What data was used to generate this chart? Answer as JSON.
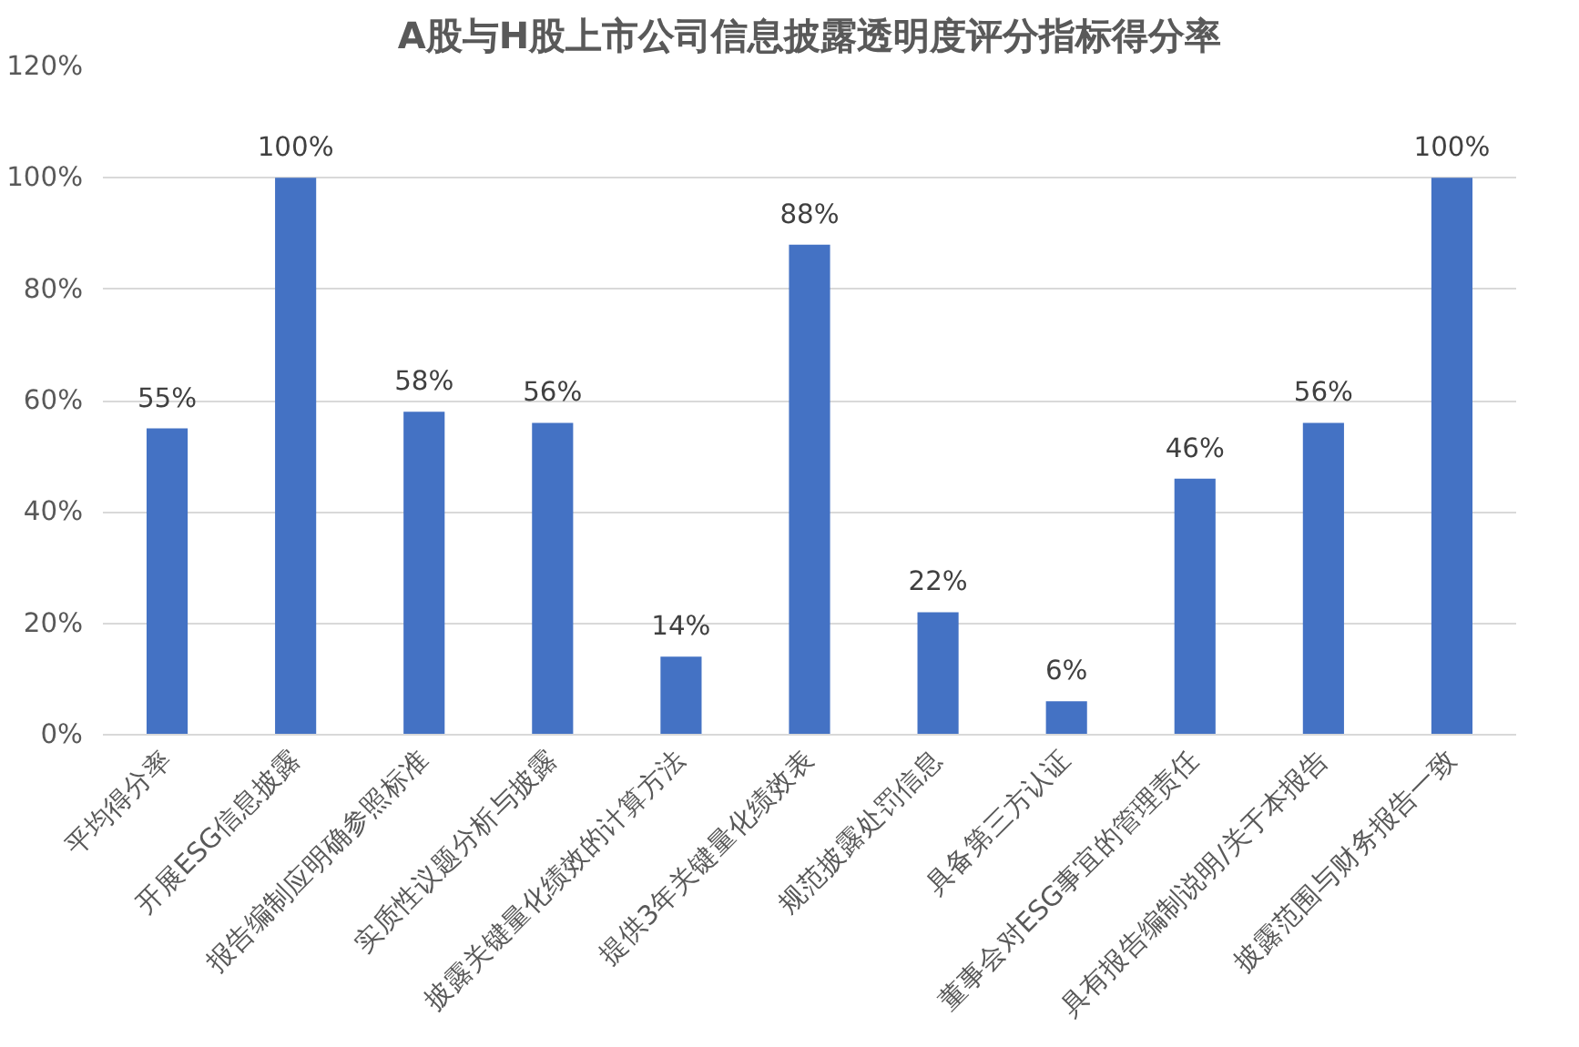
{
  "chart_data": {
    "type": "bar",
    "title": "A股与H股上市公司信息披露透明度评分指标得分率",
    "categories": [
      "平均得分率",
      "开展ESG信息披露",
      "报告编制应明确参照标准",
      "实质性议题分析与披露",
      "披露关键量化绩效的计算方法",
      "提供3年关键量化绩效表",
      "规范披露处罚信息",
      "具备第三方认证",
      "董事会对ESG事宜的管理责任",
      "具有报告编制说明/关于本报告",
      "披露范围与财务报告一致"
    ],
    "values": [
      55,
      100,
      58,
      56,
      14,
      88,
      22,
      6,
      46,
      56,
      100
    ],
    "value_labels": [
      "55%",
      "100%",
      "58%",
      "56%",
      "14%",
      "88%",
      "22%",
      "6%",
      "46%",
      "56%",
      "100%"
    ],
    "color": "#4472c4",
    "ylim": [
      0,
      120
    ],
    "yticks": [
      {
        "value": 0,
        "label": "0%"
      },
      {
        "value": 20,
        "label": "20%"
      },
      {
        "value": 40,
        "label": "40%"
      },
      {
        "value": 60,
        "label": "60%"
      },
      {
        "value": 80,
        "label": "80%"
      },
      {
        "value": 100,
        "label": "100%"
      },
      {
        "value": 120,
        "label": "120%"
      }
    ],
    "grid": "y"
  }
}
